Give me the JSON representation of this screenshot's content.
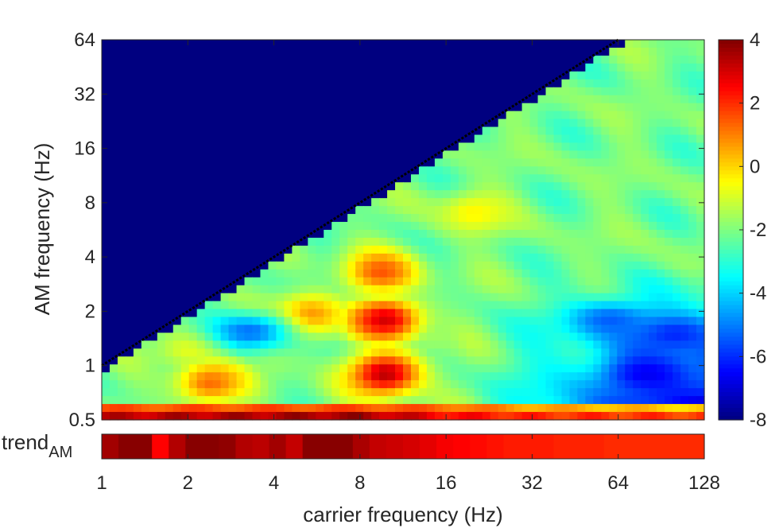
{
  "chart_data": {
    "type": "heatmap",
    "xlabel": "carrier frequency (Hz)",
    "ylabel": "AM frequency (Hz)",
    "trend_label": "trend",
    "trend_label_sub": "AM",
    "x_scale": "log2",
    "y_scale": "log2",
    "xlim": [
      1,
      128
    ],
    "ylim": [
      0.5,
      64
    ],
    "x_ticks": [
      1,
      2,
      4,
      8,
      16,
      32,
      64,
      128
    ],
    "x_tick_labels": [
      "1",
      "2",
      "4",
      "8",
      "16",
      "32",
      "64",
      "128"
    ],
    "y_ticks": [
      0.5,
      1,
      2,
      4,
      8,
      16,
      32,
      64
    ],
    "y_tick_labels": [
      "0.5",
      "1",
      "2",
      "4",
      "8",
      "16",
      "32",
      "64"
    ],
    "colorbar": {
      "range": [
        -8,
        4
      ],
      "ticks": [
        4,
        2,
        0,
        -2,
        -4,
        -6,
        -8
      ],
      "tick_labels": [
        "4",
        "2",
        "0",
        "-2",
        "-4",
        "-6",
        "-8"
      ],
      "colormap": "jet"
    },
    "masked_value": -8,
    "diagonal_line": {
      "x": [
        1,
        64
      ],
      "y": [
        1,
        64
      ],
      "style": "dotted",
      "color": "#000000"
    },
    "hotspots": [
      {
        "x": 9.8,
        "y": 0.9,
        "value": 3.3
      },
      {
        "x": 9.8,
        "y": 1.8,
        "value": 3.0
      },
      {
        "x": 9.5,
        "y": 3.3,
        "value": 1.5
      },
      {
        "x": 5.3,
        "y": 1.9,
        "value": 1.0
      },
      {
        "x": 2.4,
        "y": 0.8,
        "value": 1.2
      },
      {
        "x": 2.1,
        "y": 1.25,
        "value": -0.6
      },
      {
        "x": 3.9,
        "y": 1.1,
        "value": -1.6
      },
      {
        "x": 20,
        "y": 7,
        "value": -0.4
      },
      {
        "x": 14,
        "y": 1.5,
        "value": -1.6
      }
    ],
    "coldspots": [
      {
        "x": 80,
        "y": 0.9,
        "value": -6.8
      },
      {
        "x": 100,
        "y": 1.5,
        "value": -6.3
      },
      {
        "x": 60,
        "y": 1.8,
        "value": -5.6
      },
      {
        "x": 3.3,
        "y": 1.55,
        "value": -5.5
      }
    ],
    "bottom_rows": [
      {
        "y": 0.5,
        "value_at": [
          [
            1,
            3.2
          ],
          [
            8,
            3.6
          ],
          [
            16,
            2.5
          ],
          [
            32,
            2.0
          ],
          [
            128,
            1.8
          ]
        ]
      },
      {
        "y": 0.56,
        "value_at": [
          [
            1,
            1.5
          ],
          [
            8,
            1.6
          ],
          [
            16,
            1.3
          ],
          [
            32,
            0.6
          ],
          [
            128,
            0.0
          ]
        ]
      }
    ],
    "trend_values": [
      3.6,
      3.9,
      3.9,
      2.5,
      3.4,
      3.9,
      3.9,
      3.8,
      3.4,
      3.3,
      3.6,
      3.2,
      3.9,
      3.9,
      3.9,
      3.5,
      3.2,
      3.1,
      3.0,
      2.8,
      2.6,
      2.5,
      2.4,
      2.3,
      2.2,
      2.2,
      2.2,
      2.1,
      2.1,
      2.1,
      2.0,
      2.0,
      2.0,
      2.0,
      2.0,
      2.0
    ]
  }
}
